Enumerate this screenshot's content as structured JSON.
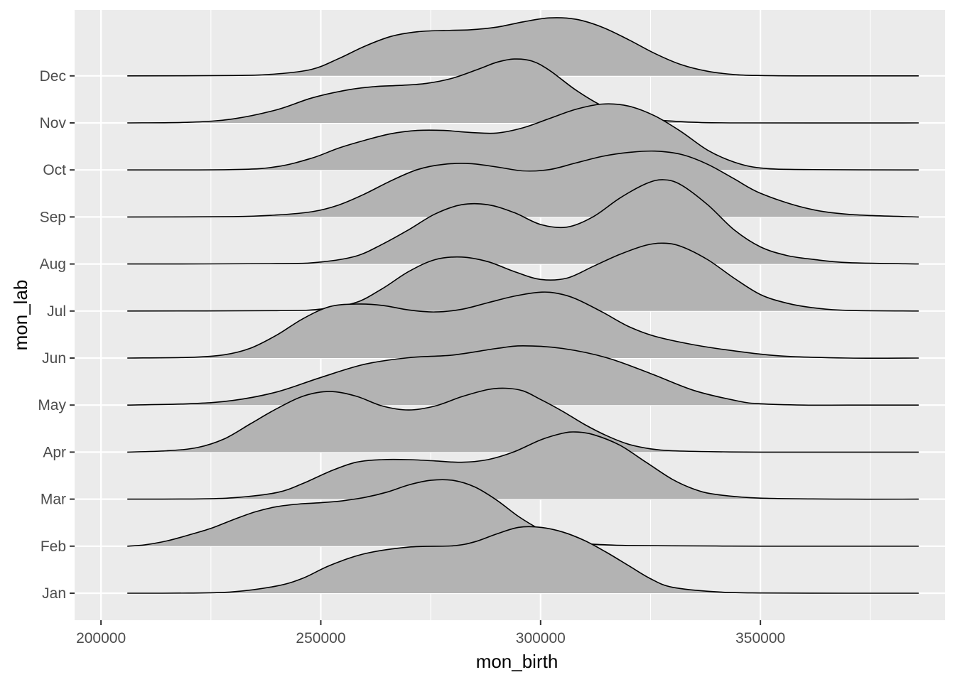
{
  "chart_data": {
    "type": "ridgeline",
    "xlabel": "mon_birth",
    "ylabel": "mon_lab",
    "xlim": [
      194000,
      392000
    ],
    "x_ticks": [
      200000,
      250000,
      300000,
      350000
    ],
    "x_tick_labels": [
      "200000",
      "250000",
      "300000",
      "350000"
    ],
    "x_range": [
      206000,
      386000
    ],
    "categories": [
      "Jan",
      "Feb",
      "Mar",
      "Apr",
      "May",
      "Jun",
      "Jul",
      "Aug",
      "Sep",
      "Oct",
      "Nov",
      "Dec"
    ],
    "ridge_scale": 1.4,
    "grid": true,
    "colors": {
      "panel": "#ebebeb",
      "grid": "#ffffff",
      "fill": "#b3b3b3",
      "stroke": "#000000"
    },
    "series": [
      {
        "name": "Jan",
        "x": [
          206000,
          220000,
          230000,
          240000,
          246000,
          252000,
          260000,
          270000,
          280000,
          285000,
          290000,
          295000,
          300000,
          305000,
          310000,
          315000,
          320000,
          325000,
          330000,
          340000,
          350000,
          370000,
          386000
        ],
        "density": [
          0,
          0.002,
          0.02,
          0.11,
          0.23,
          0.42,
          0.6,
          0.7,
          0.72,
          0.78,
          0.9,
          1.0,
          1.0,
          0.93,
          0.8,
          0.62,
          0.42,
          0.22,
          0.09,
          0.02,
          0.003,
          0,
          0
        ]
      },
      {
        "name": "Feb",
        "x": [
          206000,
          210000,
          215000,
          220000,
          225000,
          230000,
          235000,
          240000,
          245000,
          250000,
          255000,
          260000,
          265000,
          270000,
          275000,
          280000,
          285000,
          290000,
          295000,
          300000,
          305000,
          310000,
          315000,
          320000,
          330000,
          340000,
          350000,
          370000,
          386000
        ],
        "density": [
          0,
          0.02,
          0.08,
          0.17,
          0.27,
          0.4,
          0.52,
          0.6,
          0.64,
          0.66,
          0.69,
          0.74,
          0.82,
          0.93,
          1.0,
          1.0,
          0.9,
          0.7,
          0.45,
          0.25,
          0.1,
          0.04,
          0.02,
          0.01,
          0.005,
          0.002,
          0,
          0,
          0
        ]
      },
      {
        "name": "Mar",
        "x": [
          206000,
          220000,
          230000,
          240000,
          246000,
          252000,
          258000,
          264000,
          270000,
          276000,
          282000,
          288000,
          294000,
          300000,
          305000,
          308000,
          312000,
          318000,
          324000,
          330000,
          335000,
          340000,
          350000,
          370000,
          386000
        ],
        "density": [
          0,
          0.002,
          0.02,
          0.1,
          0.24,
          0.42,
          0.56,
          0.6,
          0.6,
          0.58,
          0.56,
          0.6,
          0.72,
          0.9,
          1.0,
          1.02,
          0.98,
          0.82,
          0.56,
          0.3,
          0.15,
          0.07,
          0.015,
          0,
          0
        ]
      },
      {
        "name": "Apr",
        "x": [
          206000,
          215000,
          222000,
          228000,
          234000,
          240000,
          246000,
          252000,
          258000,
          264000,
          270000,
          276000,
          282000,
          288000,
          292000,
          296000,
          300000,
          305000,
          310000,
          315000,
          320000,
          325000,
          330000,
          340000,
          350000,
          370000,
          386000
        ],
        "density": [
          0,
          0.02,
          0.07,
          0.2,
          0.43,
          0.66,
          0.85,
          0.92,
          0.85,
          0.7,
          0.64,
          0.7,
          0.84,
          0.95,
          0.97,
          0.93,
          0.8,
          0.62,
          0.42,
          0.25,
          0.12,
          0.05,
          0.02,
          0.005,
          0,
          0,
          0
        ]
      },
      {
        "name": "May",
        "x": [
          206000,
          220000,
          230000,
          240000,
          250000,
          260000,
          270000,
          280000,
          290000,
          296000,
          305000,
          315000,
          325000,
          335000,
          345000,
          350000,
          360000,
          370000,
          386000
        ],
        "density": [
          0,
          0.02,
          0.07,
          0.2,
          0.42,
          0.62,
          0.72,
          0.76,
          0.86,
          0.9,
          0.86,
          0.72,
          0.48,
          0.22,
          0.06,
          0.02,
          0,
          0,
          0
        ]
      },
      {
        "name": "Jun",
        "x": [
          206000,
          220000,
          228000,
          234000,
          240000,
          246000,
          252000,
          258000,
          264000,
          270000,
          276000,
          282000,
          288000,
          294000,
          300000,
          304000,
          308000,
          314000,
          320000,
          326000,
          335000,
          345000,
          355000,
          370000,
          386000
        ],
        "density": [
          0,
          0.01,
          0.05,
          0.15,
          0.35,
          0.6,
          0.78,
          0.82,
          0.8,
          0.73,
          0.7,
          0.74,
          0.84,
          0.94,
          1.0,
          0.98,
          0.9,
          0.7,
          0.48,
          0.33,
          0.2,
          0.1,
          0.03,
          0,
          0
        ]
      },
      {
        "name": "Jul",
        "x": [
          206000,
          240000,
          250000,
          258000,
          264000,
          270000,
          276000,
          282000,
          288000,
          294000,
          300000,
          306000,
          312000,
          318000,
          324000,
          328000,
          332000,
          338000,
          344000,
          350000,
          356000,
          362000,
          370000,
          386000
        ],
        "density": [
          0,
          0.005,
          0.03,
          0.13,
          0.34,
          0.6,
          0.78,
          0.82,
          0.75,
          0.6,
          0.48,
          0.5,
          0.68,
          0.86,
          1.0,
          1.03,
          0.98,
          0.78,
          0.5,
          0.25,
          0.12,
          0.05,
          0.01,
          0
        ]
      },
      {
        "name": "Aug",
        "x": [
          206000,
          240000,
          250000,
          258000,
          264000,
          270000,
          276000,
          282000,
          288000,
          294000,
          300000,
          306000,
          312000,
          318000,
          324000,
          328000,
          332000,
          338000,
          344000,
          350000,
          356000,
          362000,
          370000,
          386000
        ],
        "density": [
          0,
          0.005,
          0.03,
          0.12,
          0.3,
          0.52,
          0.76,
          0.9,
          0.9,
          0.78,
          0.6,
          0.56,
          0.72,
          1.0,
          1.22,
          1.28,
          1.2,
          0.9,
          0.52,
          0.26,
          0.13,
          0.07,
          0.02,
          0
        ]
      },
      {
        "name": "Sep",
        "x": [
          206000,
          230000,
          240000,
          248000,
          254000,
          260000,
          266000,
          272000,
          278000,
          284000,
          290000,
          296000,
          302000,
          308000,
          314000,
          320000,
          326000,
          332000,
          338000,
          344000,
          350000,
          360000,
          370000,
          386000
        ],
        "density": [
          0,
          0.005,
          0.03,
          0.08,
          0.18,
          0.35,
          0.55,
          0.72,
          0.8,
          0.81,
          0.76,
          0.7,
          0.72,
          0.82,
          0.92,
          0.98,
          1.0,
          0.95,
          0.8,
          0.58,
          0.36,
          0.14,
          0.04,
          0
        ]
      },
      {
        "name": "Oct",
        "x": [
          206000,
          230000,
          240000,
          248000,
          254000,
          260000,
          266000,
          272000,
          278000,
          284000,
          290000,
          296000,
          302000,
          308000,
          314000,
          320000,
          326000,
          332000,
          338000,
          344000,
          350000,
          360000,
          386000
        ],
        "density": [
          0,
          0.005,
          0.05,
          0.18,
          0.33,
          0.45,
          0.55,
          0.6,
          0.6,
          0.57,
          0.56,
          0.64,
          0.78,
          0.92,
          1.0,
          0.97,
          0.82,
          0.58,
          0.3,
          0.12,
          0.03,
          0.005,
          0
        ]
      },
      {
        "name": "Nov",
        "x": [
          206000,
          220000,
          230000,
          240000,
          248000,
          256000,
          262000,
          268000,
          274000,
          280000,
          286000,
          290000,
          294000,
          298000,
          302000,
          308000,
          314000,
          320000,
          326000,
          335000,
          345000,
          386000
        ],
        "density": [
          0,
          0.01,
          0.06,
          0.2,
          0.38,
          0.5,
          0.55,
          0.57,
          0.6,
          0.68,
          0.82,
          0.92,
          0.97,
          0.94,
          0.8,
          0.5,
          0.26,
          0.12,
          0.05,
          0.01,
          0,
          0
        ]
      },
      {
        "name": "Dec",
        "x": [
          206000,
          230000,
          240000,
          248000,
          254000,
          260000,
          266000,
          272000,
          278000,
          284000,
          290000,
          296000,
          302000,
          308000,
          314000,
          320000,
          326000,
          332000,
          338000,
          344000,
          350000,
          360000,
          386000
        ],
        "density": [
          0,
          0.005,
          0.03,
          0.1,
          0.26,
          0.45,
          0.6,
          0.67,
          0.69,
          0.7,
          0.74,
          0.82,
          0.88,
          0.86,
          0.74,
          0.55,
          0.34,
          0.17,
          0.07,
          0.02,
          0.005,
          0,
          0
        ]
      }
    ]
  }
}
